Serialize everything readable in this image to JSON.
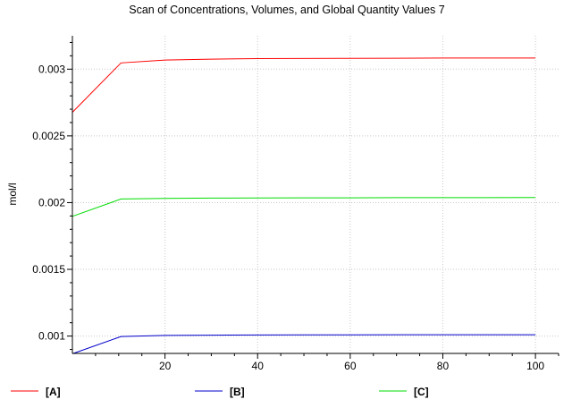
{
  "chart_data": {
    "type": "line",
    "title": "Scan of Concentrations, Volumes, and Global Quantity Values 7",
    "xlabel": "",
    "ylabel": "mol/l",
    "xlim": [
      0,
      105
    ],
    "ylim": [
      0.00087,
      0.00325
    ],
    "grid": true,
    "legend_position": "bottom",
    "x_ticks": [
      20,
      40,
      60,
      80,
      100
    ],
    "x_tick_labels": [
      "20",
      "40",
      "60",
      "80",
      "100"
    ],
    "y_ticks": [
      0.001,
      0.0015,
      0.002,
      0.0025,
      0.003
    ],
    "y_tick_labels": [
      "0.001",
      "0.0015",
      "0.002",
      "0.0025",
      "0.003"
    ],
    "x": [
      0,
      10.5,
      20,
      30,
      40,
      50,
      60,
      70,
      80,
      90,
      100
    ],
    "series": [
      {
        "name": "[A]",
        "color": "#ff0000",
        "values": [
          0.002677,
          0.003047,
          0.003068,
          0.003075,
          0.003079,
          0.00308,
          0.003081,
          0.003082,
          0.003083,
          0.003083,
          0.003083
        ]
      },
      {
        "name": "[B]",
        "color": "#0000cc",
        "values": [
          0.000867,
          0.000997,
          0.001005,
          0.001007,
          0.001008,
          0.001009,
          0.001009,
          0.00101,
          0.00101,
          0.00101,
          0.00101
        ]
      },
      {
        "name": "[C]",
        "color": "#00dd00",
        "values": [
          0.001897,
          0.002027,
          0.002032,
          0.002034,
          0.002035,
          0.002036,
          0.002036,
          0.002037,
          0.002037,
          0.002037,
          0.002038
        ]
      }
    ]
  }
}
